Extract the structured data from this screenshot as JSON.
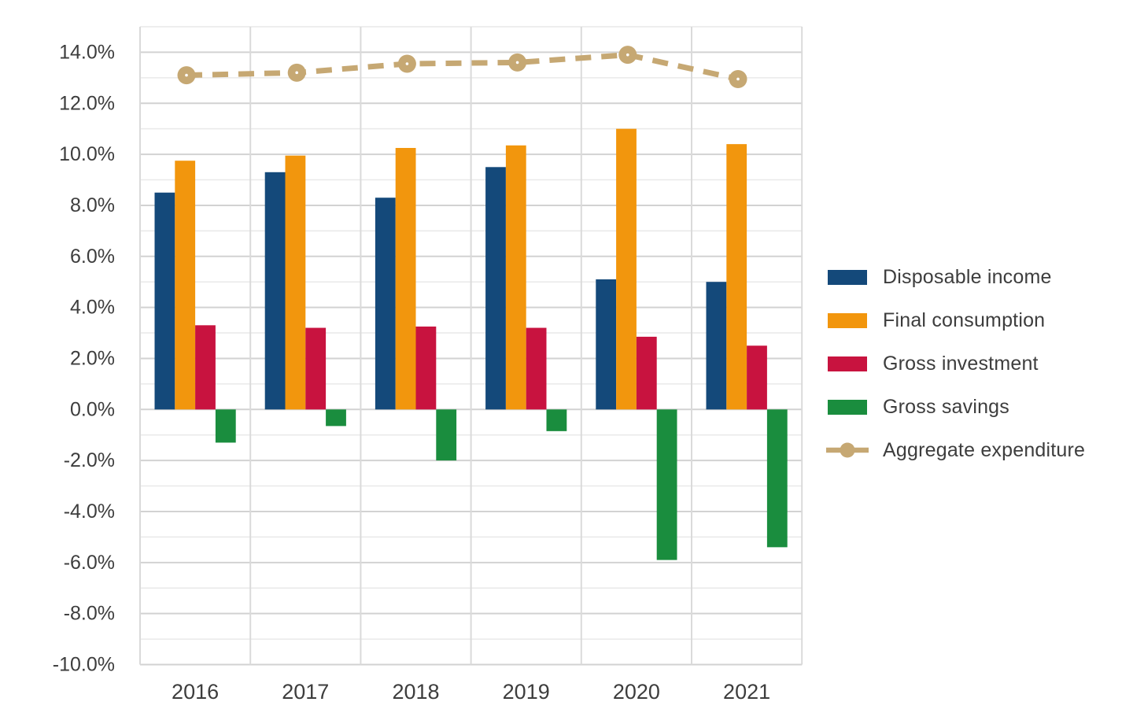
{
  "chart_data": {
    "type": "bar",
    "subtype": "clustered-bars-with-dashed-line-overlay",
    "title": "",
    "xlabel": "",
    "ylabel": "",
    "categories": [
      "2016",
      "2017",
      "2018",
      "2019",
      "2020",
      "2021"
    ],
    "series": [
      {
        "name": "Disposable income",
        "type": "bar",
        "color": "#14497A",
        "values": [
          8.5,
          9.3,
          8.3,
          9.5,
          5.1,
          5.0
        ]
      },
      {
        "name": "Final consumption",
        "type": "bar",
        "color": "#F2960D",
        "values": [
          9.75,
          9.95,
          10.25,
          10.35,
          11.0,
          10.4
        ]
      },
      {
        "name": "Gross investment",
        "type": "bar",
        "color": "#C8133F",
        "values": [
          3.3,
          3.2,
          3.25,
          3.2,
          2.85,
          2.5
        ]
      },
      {
        "name": "Gross savings",
        "type": "bar",
        "color": "#1A8D3E",
        "values": [
          -1.3,
          -0.65,
          -2.0,
          -0.85,
          -5.9,
          -5.4
        ]
      },
      {
        "name": "Aggregate expenditure",
        "type": "line",
        "color": "#C6A873",
        "dashed": true,
        "marker": "circle",
        "values": [
          13.1,
          13.2,
          13.55,
          13.6,
          13.9,
          12.95
        ]
      }
    ],
    "ylim": [
      -10,
      15
    ],
    "y_tick_values": [
      14,
      12,
      10,
      8,
      6,
      4,
      2,
      0,
      -2,
      -4,
      -6,
      -8,
      -10
    ],
    "y_tick_labels": [
      "14.0%",
      "12.0%",
      "10.0%",
      "8.0%",
      "6.0%",
      "4.0%",
      "2.0%",
      "0.0%",
      "-2.0%",
      "-4.0%",
      "-6.0%",
      "-8.0%",
      "-10.0%"
    ],
    "grid": {
      "horizontal_minor_step_percent": 1,
      "horizontal_major_step_percent": 2,
      "vertical_category_separators": true,
      "major_color": "#D2D2D2",
      "minor_color": "#E9E9E9",
      "vertical_color": "#DADADA"
    },
    "legend_position": "right",
    "text_color": "#3d3d3d",
    "background_color": "#ffffff"
  }
}
